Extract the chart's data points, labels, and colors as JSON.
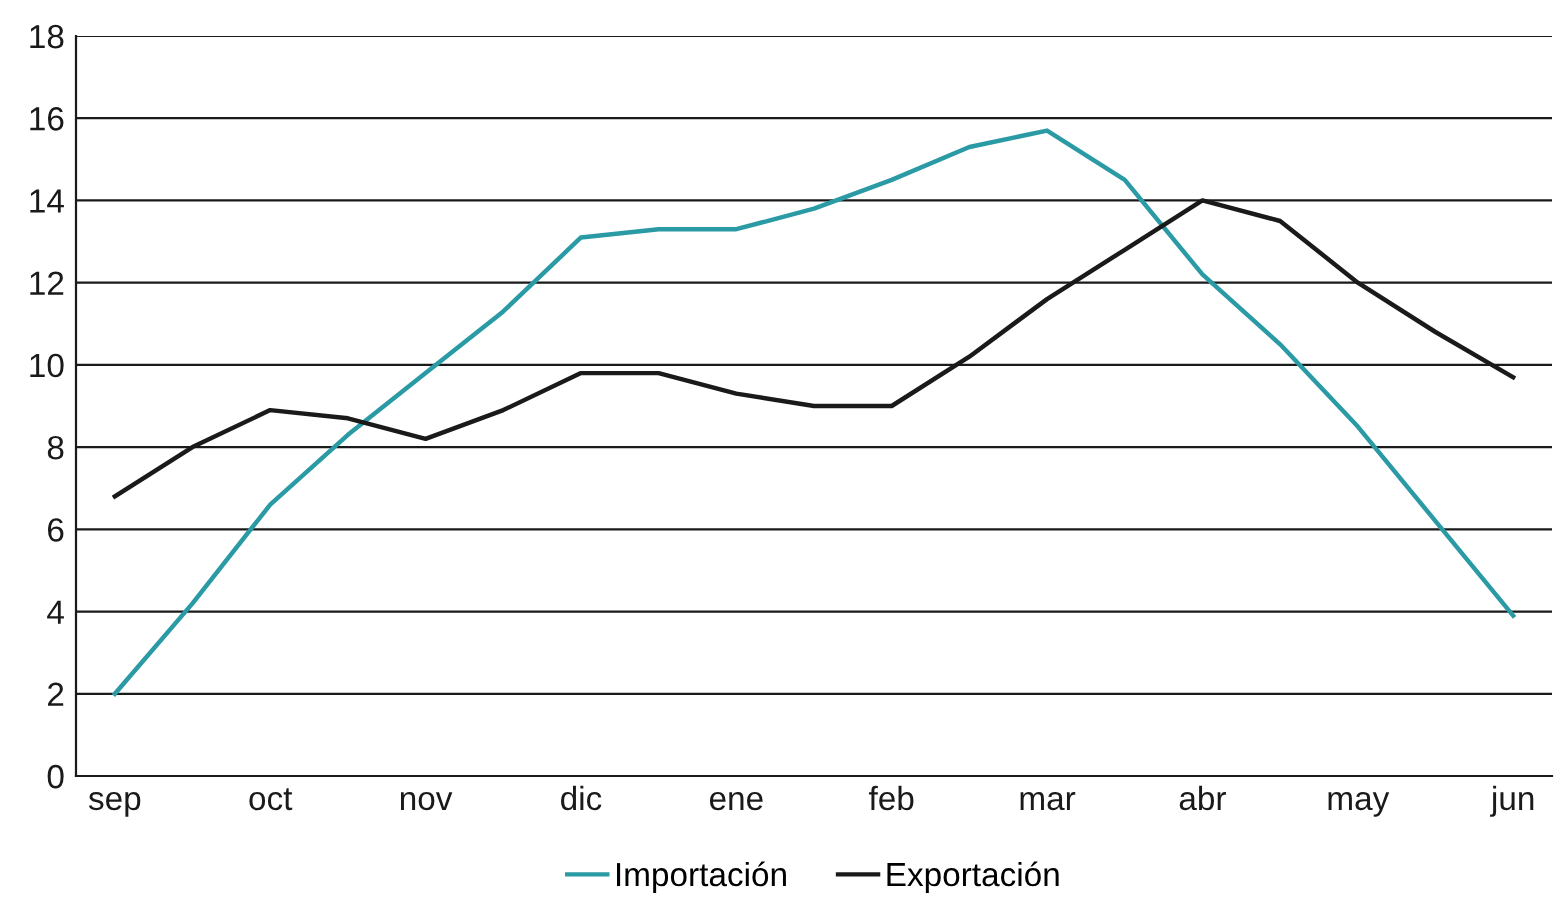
{
  "chart_data": {
    "type": "line",
    "categories": [
      "sep",
      null,
      "oct",
      null,
      "nov",
      null,
      "dic",
      null,
      "ene",
      null,
      "feb",
      null,
      "mar",
      null,
      "abr",
      null,
      "may",
      null,
      "jun"
    ],
    "series": [
      {
        "name": "Importación",
        "color": "#2a9aa5",
        "values": [
          2.0,
          4.2,
          6.6,
          8.3,
          9.8,
          11.3,
          13.1,
          13.3,
          13.3,
          13.8,
          14.5,
          15.3,
          15.7,
          14.5,
          12.2,
          10.5,
          8.5,
          6.2,
          3.9
        ]
      },
      {
        "name": "Exportación",
        "color": "#1a1a1a",
        "values": [
          6.8,
          8.0,
          8.9,
          8.7,
          8.2,
          8.9,
          9.8,
          9.8,
          9.3,
          9.0,
          9.0,
          10.2,
          11.6,
          12.8,
          14.0,
          13.5,
          12.0,
          10.8,
          9.7
        ]
      }
    ],
    "ylim": [
      0,
      18
    ],
    "yticks": [
      0,
      2,
      4,
      6,
      8,
      10,
      12,
      14,
      16,
      18
    ],
    "grid": "y",
    "legend": "bottom",
    "marker": "none",
    "line_style": "solid"
  }
}
